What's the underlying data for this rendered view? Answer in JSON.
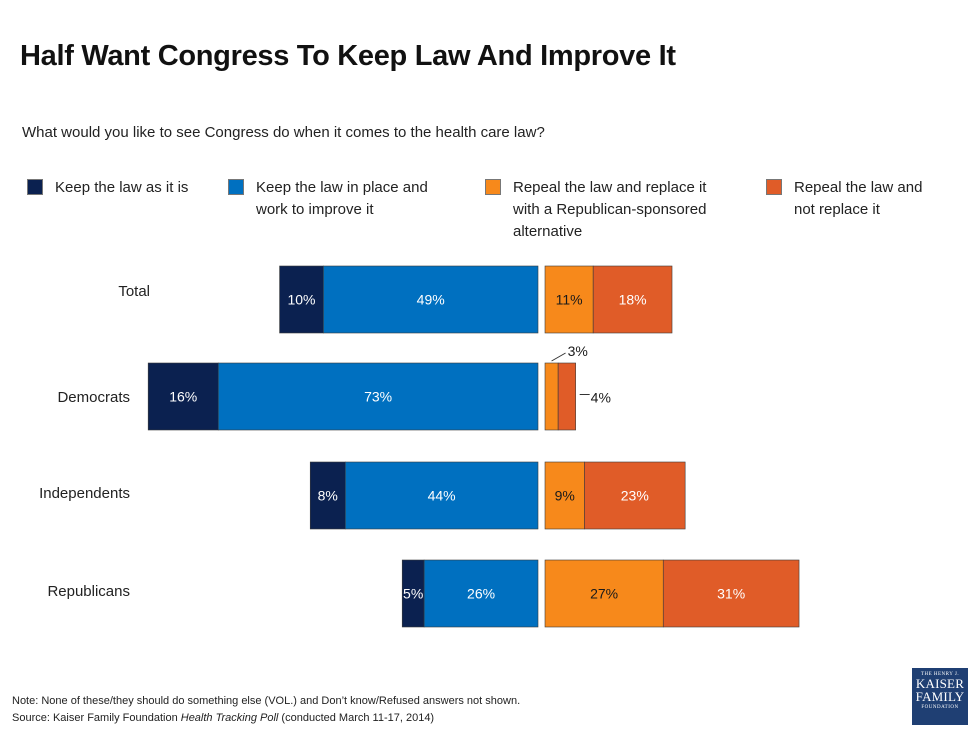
{
  "title": "Half Want Congress To Keep Law And Improve It",
  "subtitle": "What would you like to see Congress do when it comes to the health care law?",
  "legend": [
    {
      "label": "Keep the law as it is",
      "color": "#0b2150"
    },
    {
      "label": "Keep the law in place and\nwork to improve it",
      "color": "#0070c0"
    },
    {
      "label": "Repeal the law and replace it\nwith a Republican-sponsored\nalternative",
      "color": "#f7891b"
    },
    {
      "label": "Repeal the law and\nnot replace it",
      "color": "#e05c28"
    }
  ],
  "chart_data": {
    "type": "bar",
    "orientation": "horizontal-diverging",
    "title": "Half Want Congress To Keep Law And Improve It",
    "subtitle": "What would you like to see Congress do when it comes to the health care law?",
    "categories": [
      "Total",
      "Democrats",
      "Independents",
      "Republicans"
    ],
    "series": [
      {
        "name": "Keep the law as it is",
        "side": "left",
        "color": "#0b2150",
        "label_color": "#ffffff",
        "values": [
          10,
          16,
          8,
          5
        ]
      },
      {
        "name": "Keep the law in place and work to improve it",
        "side": "left",
        "color": "#0070c0",
        "label_color": "#ffffff",
        "values": [
          49,
          73,
          44,
          26
        ]
      },
      {
        "name": "Repeal the law and replace it with a Republican-sponsored alternative",
        "side": "right",
        "color": "#f7891b",
        "label_color": "#1a1a1a",
        "values": [
          11,
          3,
          9,
          27
        ]
      },
      {
        "name": "Repeal the law and not replace it",
        "side": "right",
        "color": "#e05c28",
        "label_color": "#ffffff",
        "values": [
          18,
          4,
          23,
          31
        ]
      }
    ],
    "value_suffix": "%",
    "xlabel": "",
    "ylabel": "",
    "grid": false,
    "legend_position": "top",
    "callouts": [
      {
        "category": "Democrats",
        "series": 2,
        "text": "3%"
      },
      {
        "category": "Democrats",
        "series": 3,
        "text": "4%"
      }
    ]
  },
  "footer": {
    "note": "Note:  None of these/they should do something else (VOL.) and Don’t know/Refused answers not shown.",
    "source_prefix": "Source: Kaiser Family Foundation ",
    "source_italic": "Health Tracking Poll",
    "source_suffix": " (conducted March 11-17, 2014)"
  },
  "logo": {
    "line1": "THE HENRY J.",
    "line2": "KAISER",
    "line3": "FAMILY",
    "line4": "FOUNDATION"
  }
}
